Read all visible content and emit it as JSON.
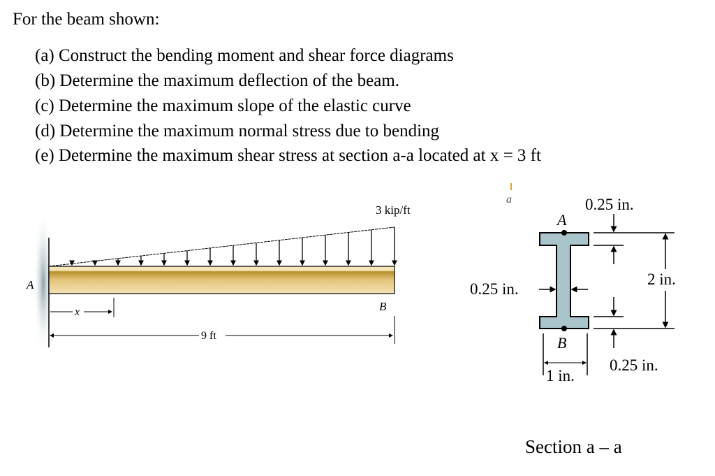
{
  "intro": "For the beam shown:",
  "questions": [
    {
      "label": "(a)",
      "text": "Construct the bending moment and shear force diagrams"
    },
    {
      "label": "(b)",
      "text": "Determine the maximum deflection of the beam."
    },
    {
      "label": "(c)",
      "text": "Determine the maximum slope of the elastic curve"
    },
    {
      "label": "(d)",
      "text": "Determine the maximum normal stress due to bending"
    },
    {
      "label": "(e)",
      "text": "Determine the maximum shear stress at section a-a located at x = 3 ft"
    }
  ],
  "beam": {
    "load": "3 kip/ft",
    "support_label": "A",
    "end_label": "B",
    "x_label": "x",
    "length": "9 ft",
    "section_mark": "a",
    "beam_color": "#d9b765",
    "wall_color": "#9fb3b8"
  },
  "section": {
    "point_top": "A",
    "point_bottom": "B",
    "top_flange": "0.25 in.",
    "web": "0.25 in.",
    "height": "2 in.",
    "bottom_flange": "0.25 in.",
    "width": "1 in.",
    "title": "Section a – a",
    "fill_color": "#a9c4cb"
  }
}
